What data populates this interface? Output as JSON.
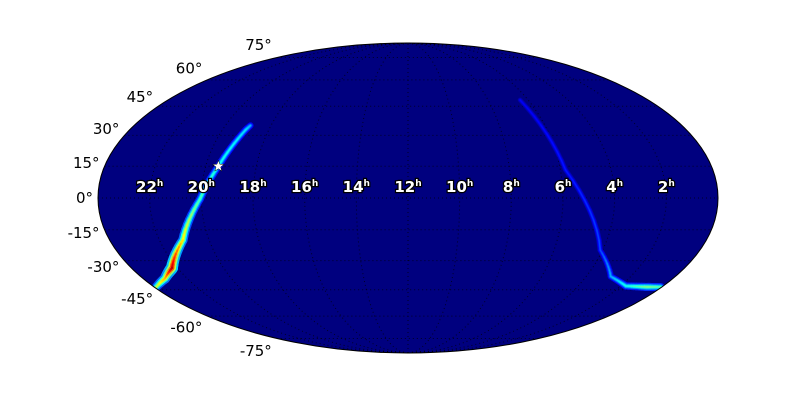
{
  "chart_data": {
    "type": "heatmap",
    "projection": "mollweide",
    "background_color": "#00007f",
    "colormap": "jet",
    "grid": true,
    "dec_ticks": [
      75,
      60,
      45,
      30,
      15,
      0,
      -15,
      -30,
      -45,
      -60,
      -75
    ],
    "dec_tick_labels": [
      "75°",
      "60°",
      "45°",
      "30°",
      "15°",
      "0°",
      "-15°",
      "-30°",
      "-45°",
      "-60°",
      "-75°"
    ],
    "ra_ticks": [
      22,
      20,
      18,
      16,
      14,
      12,
      10,
      8,
      6,
      4,
      2
    ],
    "ra_tick_labels": [
      "22",
      "20",
      "18",
      "16",
      "14",
      "12",
      "10",
      "8",
      "6",
      "4",
      "2"
    ],
    "ra_unit": "h",
    "marker": {
      "symbol": "star",
      "color": "#ffffff",
      "ra_h": 19.5,
      "dec": 15
    },
    "arcs": [
      {
        "points": [
          {
            "ra_h": 18.9,
            "dec": 35,
            "intensity": 0.3
          },
          {
            "ra_h": 19.0,
            "dec": 32.7,
            "intensity": 0.35
          },
          {
            "ra_h": 19.5,
            "dec": 15,
            "intensity": 0.4
          },
          {
            "ra_h": 20.05,
            "dec": -0.5,
            "intensity": 0.45
          },
          {
            "ra_h": 21.05,
            "dec": -19.9,
            "intensity": 0.65
          },
          {
            "ra_h": 22.24,
            "dec": -33.7,
            "intensity": 0.95
          },
          {
            "ra_h": 23.0,
            "dec": -39,
            "intensity": 0.7
          },
          {
            "ra_h": 23.9,
            "dec": -43.5,
            "intensity": 0.55
          }
        ]
      },
      {
        "points": [
          {
            "ra_h": 6.4,
            "dec": 48.4,
            "intensity": 0.12
          },
          {
            "ra_h": 5.8,
            "dec": 13.3,
            "intensity": 0.15
          },
          {
            "ra_h": 4.1,
            "dec": -24.8,
            "intensity": 0.2
          },
          {
            "ra_h": 2.9,
            "dec": -38,
            "intensity": 0.3
          },
          {
            "ra_h": 1.75,
            "dec": -43,
            "intensity": 0.4
          },
          {
            "ra_h": 0.7,
            "dec": -43.5,
            "intensity": 0.5
          },
          {
            "ra_h": 0.05,
            "dec": -43.5,
            "intensity": 0.45
          }
        ]
      }
    ]
  }
}
